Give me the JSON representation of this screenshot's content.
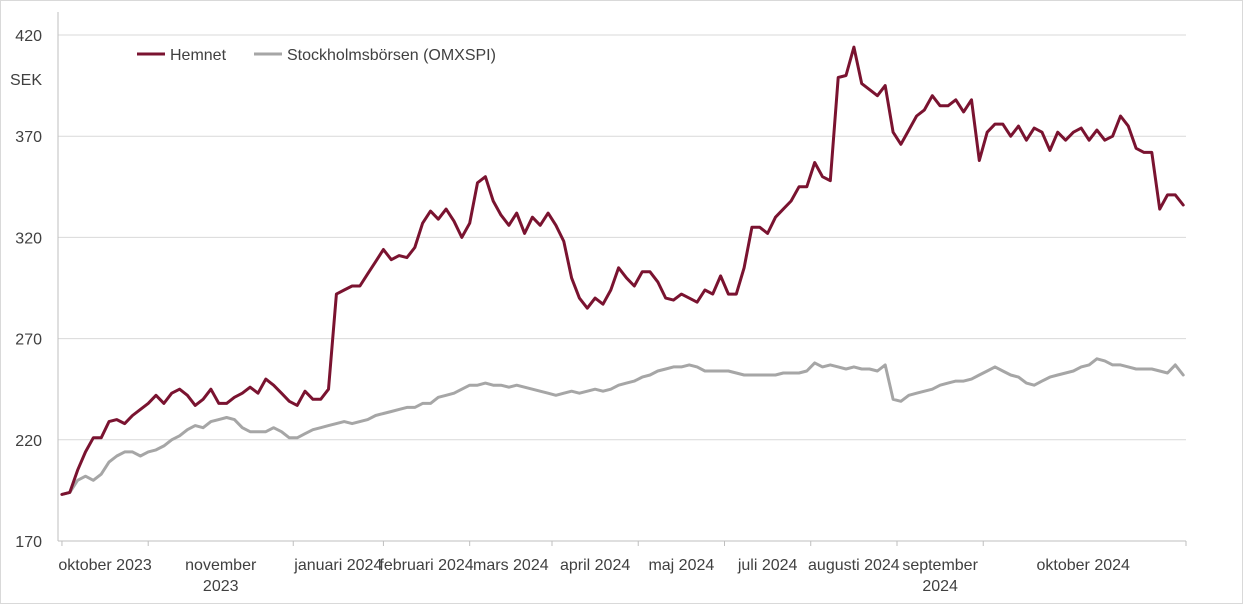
{
  "chart_data": {
    "type": "line",
    "y_unit": "SEK",
    "ylim": [
      170,
      420
    ],
    "y_ticks": [
      "420",
      "370",
      "320",
      "270",
      "220",
      "170"
    ],
    "grid": true,
    "legend_position": "top-left",
    "x_labels": [
      {
        "line1": "oktober 2023",
        "line2": "",
        "t": 0
      },
      {
        "line1": "november",
        "line2": "2023",
        "t": 22
      },
      {
        "line1": "januari 2024",
        "line2": "",
        "t": 59
      },
      {
        "line1": "februari 2024",
        "line2": "",
        "t": 82
      },
      {
        "line1": "mars 2024",
        "line2": "",
        "t": 104
      },
      {
        "line1": "april 2024",
        "line2": "",
        "t": 125
      },
      {
        "line1": "maj 2024",
        "line2": "",
        "t": 147
      },
      {
        "line1": "juli 2024",
        "line2": "",
        "t": 169
      },
      {
        "line1": "augusti 2024",
        "line2": "",
        "t": 191
      },
      {
        "line1": "september",
        "line2": "2024",
        "t": 213
      },
      {
        "line1": "oktober 2024",
        "line2": "",
        "t": 235
      }
    ],
    "series": [
      {
        "name": "Hemnet",
        "color": "#7a1330",
        "values": [
          [
            0,
            193
          ],
          [
            2,
            194
          ],
          [
            4,
            205
          ],
          [
            6,
            214
          ],
          [
            8,
            221
          ],
          [
            10,
            221
          ],
          [
            12,
            229
          ],
          [
            14,
            230
          ],
          [
            16,
            228
          ],
          [
            18,
            232
          ],
          [
            20,
            235
          ],
          [
            22,
            238
          ],
          [
            24,
            242
          ],
          [
            26,
            238
          ],
          [
            28,
            243
          ],
          [
            30,
            245
          ],
          [
            32,
            242
          ],
          [
            34,
            237
          ],
          [
            36,
            240
          ],
          [
            38,
            245
          ],
          [
            40,
            238
          ],
          [
            42,
            238
          ],
          [
            44,
            241
          ],
          [
            46,
            243
          ],
          [
            48,
            246
          ],
          [
            50,
            243
          ],
          [
            52,
            250
          ],
          [
            54,
            247
          ],
          [
            56,
            243
          ],
          [
            58,
            239
          ],
          [
            60,
            237
          ],
          [
            62,
            244
          ],
          [
            64,
            240
          ],
          [
            66,
            240
          ],
          [
            68,
            245
          ],
          [
            70,
            292
          ],
          [
            72,
            294
          ],
          [
            74,
            296
          ],
          [
            76,
            296
          ],
          [
            78,
            302
          ],
          [
            80,
            308
          ],
          [
            82,
            314
          ],
          [
            84,
            309
          ],
          [
            86,
            311
          ],
          [
            88,
            310
          ],
          [
            90,
            315
          ],
          [
            92,
            327
          ],
          [
            94,
            333
          ],
          [
            96,
            329
          ],
          [
            98,
            334
          ],
          [
            100,
            328
          ],
          [
            102,
            320
          ],
          [
            104,
            327
          ],
          [
            106,
            347
          ],
          [
            108,
            350
          ],
          [
            110,
            338
          ],
          [
            112,
            331
          ],
          [
            114,
            326
          ],
          [
            116,
            332
          ],
          [
            118,
            322
          ],
          [
            120,
            330
          ],
          [
            122,
            326
          ],
          [
            124,
            332
          ],
          [
            126,
            326
          ],
          [
            128,
            318
          ],
          [
            130,
            300
          ],
          [
            132,
            290
          ],
          [
            134,
            285
          ],
          [
            136,
            290
          ],
          [
            138,
            287
          ],
          [
            140,
            294
          ],
          [
            142,
            305
          ],
          [
            144,
            300
          ],
          [
            146,
            296
          ],
          [
            148,
            303
          ],
          [
            150,
            303
          ],
          [
            152,
            298
          ],
          [
            154,
            290
          ],
          [
            156,
            289
          ],
          [
            158,
            292
          ],
          [
            160,
            290
          ],
          [
            162,
            288
          ],
          [
            164,
            294
          ],
          [
            166,
            292
          ],
          [
            168,
            301
          ],
          [
            170,
            292
          ],
          [
            172,
            292
          ],
          [
            174,
            305
          ],
          [
            176,
            325
          ],
          [
            178,
            325
          ],
          [
            180,
            322
          ],
          [
            182,
            330
          ],
          [
            184,
            334
          ],
          [
            186,
            338
          ],
          [
            188,
            345
          ],
          [
            190,
            345
          ],
          [
            192,
            357
          ],
          [
            194,
            350
          ],
          [
            196,
            348
          ],
          [
            198,
            399
          ],
          [
            200,
            400
          ],
          [
            202,
            414
          ],
          [
            204,
            396
          ],
          [
            206,
            393
          ],
          [
            208,
            390
          ],
          [
            210,
            395
          ],
          [
            212,
            372
          ],
          [
            214,
            366
          ],
          [
            216,
            373
          ],
          [
            218,
            380
          ],
          [
            220,
            383
          ],
          [
            222,
            390
          ],
          [
            224,
            385
          ],
          [
            226,
            385
          ],
          [
            228,
            388
          ],
          [
            230,
            382
          ],
          [
            232,
            388
          ],
          [
            234,
            358
          ],
          [
            236,
            372
          ],
          [
            238,
            376
          ],
          [
            240,
            376
          ],
          [
            242,
            370
          ],
          [
            244,
            375
          ],
          [
            246,
            368
          ],
          [
            248,
            374
          ],
          [
            250,
            372
          ],
          [
            252,
            363
          ],
          [
            254,
            372
          ],
          [
            256,
            368
          ],
          [
            258,
            372
          ],
          [
            260,
            374
          ],
          [
            262,
            368
          ],
          [
            264,
            373
          ],
          [
            266,
            368
          ],
          [
            268,
            370
          ],
          [
            270,
            380
          ],
          [
            272,
            375
          ],
          [
            274,
            364
          ],
          [
            276,
            362
          ],
          [
            278,
            362
          ],
          [
            280,
            334
          ],
          [
            282,
            341
          ],
          [
            284,
            341
          ],
          [
            286,
            336
          ]
        ]
      },
      {
        "name": "Stockholmsbörsen (OMXSPI)",
        "color": "#a6a6a6",
        "values": [
          [
            0,
            193
          ],
          [
            2,
            194
          ],
          [
            4,
            200
          ],
          [
            6,
            202
          ],
          [
            8,
            200
          ],
          [
            10,
            203
          ],
          [
            12,
            209
          ],
          [
            14,
            212
          ],
          [
            16,
            214
          ],
          [
            18,
            214
          ],
          [
            20,
            212
          ],
          [
            22,
            214
          ],
          [
            24,
            215
          ],
          [
            26,
            217
          ],
          [
            28,
            220
          ],
          [
            30,
            222
          ],
          [
            32,
            225
          ],
          [
            34,
            227
          ],
          [
            36,
            226
          ],
          [
            38,
            229
          ],
          [
            40,
            230
          ],
          [
            42,
            231
          ],
          [
            44,
            230
          ],
          [
            46,
            226
          ],
          [
            48,
            224
          ],
          [
            50,
            224
          ],
          [
            52,
            224
          ],
          [
            54,
            226
          ],
          [
            56,
            224
          ],
          [
            58,
            221
          ],
          [
            60,
            221
          ],
          [
            62,
            223
          ],
          [
            64,
            225
          ],
          [
            66,
            226
          ],
          [
            68,
            227
          ],
          [
            70,
            228
          ],
          [
            72,
            229
          ],
          [
            74,
            228
          ],
          [
            76,
            229
          ],
          [
            78,
            230
          ],
          [
            80,
            232
          ],
          [
            82,
            233
          ],
          [
            84,
            234
          ],
          [
            86,
            235
          ],
          [
            88,
            236
          ],
          [
            90,
            236
          ],
          [
            92,
            238
          ],
          [
            94,
            238
          ],
          [
            96,
            241
          ],
          [
            98,
            242
          ],
          [
            100,
            243
          ],
          [
            102,
            245
          ],
          [
            104,
            247
          ],
          [
            106,
            247
          ],
          [
            108,
            248
          ],
          [
            110,
            247
          ],
          [
            112,
            247
          ],
          [
            114,
            246
          ],
          [
            116,
            247
          ],
          [
            118,
            246
          ],
          [
            120,
            245
          ],
          [
            122,
            244
          ],
          [
            124,
            243
          ],
          [
            126,
            242
          ],
          [
            128,
            243
          ],
          [
            130,
            244
          ],
          [
            132,
            243
          ],
          [
            134,
            244
          ],
          [
            136,
            245
          ],
          [
            138,
            244
          ],
          [
            140,
            245
          ],
          [
            142,
            247
          ],
          [
            144,
            248
          ],
          [
            146,
            249
          ],
          [
            148,
            251
          ],
          [
            150,
            252
          ],
          [
            152,
            254
          ],
          [
            154,
            255
          ],
          [
            156,
            256
          ],
          [
            158,
            256
          ],
          [
            160,
            257
          ],
          [
            162,
            256
          ],
          [
            164,
            254
          ],
          [
            166,
            254
          ],
          [
            168,
            254
          ],
          [
            170,
            254
          ],
          [
            172,
            253
          ],
          [
            174,
            252
          ],
          [
            176,
            252
          ],
          [
            178,
            252
          ],
          [
            180,
            252
          ],
          [
            182,
            252
          ],
          [
            184,
            253
          ],
          [
            186,
            253
          ],
          [
            188,
            253
          ],
          [
            190,
            254
          ],
          [
            192,
            258
          ],
          [
            194,
            256
          ],
          [
            196,
            257
          ],
          [
            198,
            256
          ],
          [
            200,
            255
          ],
          [
            202,
            256
          ],
          [
            204,
            255
          ],
          [
            206,
            255
          ],
          [
            208,
            254
          ],
          [
            210,
            257
          ],
          [
            212,
            240
          ],
          [
            214,
            239
          ],
          [
            216,
            242
          ],
          [
            218,
            243
          ],
          [
            220,
            244
          ],
          [
            222,
            245
          ],
          [
            224,
            247
          ],
          [
            226,
            248
          ],
          [
            228,
            249
          ],
          [
            230,
            249
          ],
          [
            232,
            250
          ],
          [
            234,
            252
          ],
          [
            236,
            254
          ],
          [
            238,
            256
          ],
          [
            240,
            254
          ],
          [
            242,
            252
          ],
          [
            244,
            251
          ],
          [
            246,
            248
          ],
          [
            248,
            247
          ],
          [
            250,
            249
          ],
          [
            252,
            251
          ],
          [
            254,
            252
          ],
          [
            256,
            253
          ],
          [
            258,
            254
          ],
          [
            260,
            256
          ],
          [
            262,
            257
          ],
          [
            264,
            260
          ],
          [
            266,
            259
          ],
          [
            268,
            257
          ],
          [
            270,
            257
          ],
          [
            272,
            256
          ],
          [
            274,
            255
          ],
          [
            276,
            255
          ],
          [
            278,
            255
          ],
          [
            280,
            254
          ],
          [
            282,
            253
          ],
          [
            284,
            257
          ],
          [
            286,
            252
          ]
        ]
      }
    ]
  }
}
